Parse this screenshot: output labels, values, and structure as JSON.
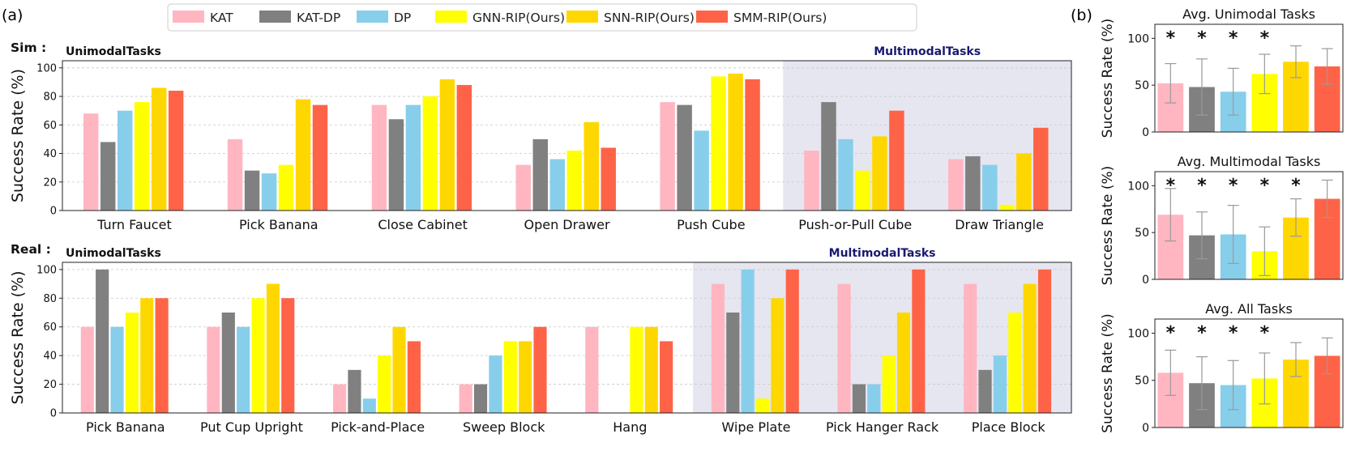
{
  "panel_labels": {
    "a": "(a)",
    "b": "(b)"
  },
  "colors": {
    "KAT": "#FFB6C1",
    "KAT-DP": "#808080",
    "DP": "#87CEEB",
    "GNN-RIP(Ours)": "#FFFF00",
    "SNN-RIP(Ours)": "#FFD700",
    "SMM-RIP(Ours)": "#FF6347",
    "multimodal_bg": "#E6E6F0",
    "multimodal_title": "#191970"
  },
  "legend": [
    "KAT",
    "KAT-DP",
    "DP",
    "GNN-RIP(Ours)",
    "SNN-RIP(Ours)",
    "SMM-RIP(Ours)"
  ],
  "chart_data": [
    {
      "type": "bar",
      "row_label": "Sim :",
      "ylabel": "Success Rate (%)",
      "ylim": [
        0,
        105
      ],
      "yticks": [
        0,
        20,
        40,
        60,
        80,
        100
      ],
      "grid": "y-dashed",
      "unimodal_label": "UnimodalTasks",
      "multimodal_label": "MultimodalTasks",
      "multimodal_start_index": 5,
      "categories": [
        "Turn Faucet",
        "Pick Banana",
        "Close Cabinet",
        "Open Drawer",
        "Push Cube",
        "Push-or-Pull Cube",
        "Draw Triangle"
      ],
      "series": [
        {
          "name": "KAT",
          "values": [
            68,
            50,
            74,
            32,
            76,
            42,
            36
          ]
        },
        {
          "name": "KAT-DP",
          "values": [
            48,
            28,
            64,
            50,
            74,
            76,
            38
          ]
        },
        {
          "name": "DP",
          "values": [
            70,
            26,
            74,
            36,
            56,
            50,
            32
          ]
        },
        {
          "name": "GNN-RIP(Ours)",
          "values": [
            76,
            32,
            80,
            42,
            94,
            28,
            4
          ]
        },
        {
          "name": "SNN-RIP(Ours)",
          "values": [
            86,
            78,
            92,
            62,
            96,
            52,
            40
          ]
        },
        {
          "name": "SMM-RIP(Ours)",
          "values": [
            84,
            74,
            88,
            44,
            92,
            70,
            58
          ]
        }
      ]
    },
    {
      "type": "bar",
      "row_label": "Real :",
      "ylabel": "Success Rate (%)",
      "ylim": [
        0,
        105
      ],
      "yticks": [
        0,
        20,
        40,
        60,
        80,
        100
      ],
      "grid": "y-dashed",
      "unimodal_label": "UnimodalTasks",
      "multimodal_label": "MultimodalTasks",
      "multimodal_start_index": 5,
      "categories": [
        "Pick Banana",
        "Put Cup Upright",
        "Pick-and-Place",
        "Sweep Block",
        "Hang",
        "Wipe Plate",
        "Pick Hanger Rack",
        "Place Block"
      ],
      "series": [
        {
          "name": "KAT",
          "values": [
            60,
            60,
            20,
            20,
            60,
            90,
            90,
            90
          ]
        },
        {
          "name": "KAT-DP",
          "values": [
            100,
            70,
            30,
            20,
            0,
            70,
            20,
            30
          ]
        },
        {
          "name": "DP",
          "values": [
            60,
            60,
            10,
            40,
            0,
            100,
            20,
            40
          ]
        },
        {
          "name": "GNN-RIP(Ours)",
          "values": [
            70,
            80,
            40,
            50,
            60,
            10,
            40,
            70
          ]
        },
        {
          "name": "SNN-RIP(Ours)",
          "values": [
            80,
            90,
            60,
            50,
            60,
            80,
            70,
            90
          ]
        },
        {
          "name": "SMM-RIP(Ours)",
          "values": [
            80,
            80,
            50,
            60,
            50,
            100,
            100,
            100
          ]
        }
      ]
    },
    {
      "type": "bar",
      "title": "Avg. Unimodal Tasks",
      "ylabel": "Success Rate (%)",
      "ylim": [
        0,
        115
      ],
      "yticks": [
        0,
        50,
        100
      ],
      "error_bars": true,
      "categories": [
        "KAT",
        "KAT-DP",
        "DP",
        "GNN-RIP(Ours)",
        "SNN-RIP(Ours)",
        "SMM-RIP(Ours)"
      ],
      "values": [
        52,
        48,
        43,
        62,
        75,
        70
      ],
      "errors": [
        21,
        30,
        25,
        21,
        17,
        19
      ],
      "significance": [
        "*",
        "*",
        "*",
        "*",
        "",
        ""
      ]
    },
    {
      "type": "bar",
      "title": "Avg. Multimodal Tasks",
      "ylabel": "Success Rate (%)",
      "ylim": [
        0,
        115
      ],
      "yticks": [
        0,
        50,
        100
      ],
      "error_bars": true,
      "categories": [
        "KAT",
        "KAT-DP",
        "DP",
        "GNN-RIP(Ours)",
        "SNN-RIP(Ours)",
        "SMM-RIP(Ours)"
      ],
      "values": [
        69,
        47,
        48,
        30,
        66,
        86
      ],
      "errors": [
        28,
        25,
        31,
        26,
        20,
        20
      ],
      "significance": [
        "*",
        "*",
        "*",
        "*",
        "*",
        ""
      ]
    },
    {
      "type": "bar",
      "title": "Avg. All Tasks",
      "ylabel": "Success Rate (%)",
      "ylim": [
        0,
        115
      ],
      "yticks": [
        0,
        50,
        100
      ],
      "error_bars": true,
      "categories": [
        "KAT",
        "KAT-DP",
        "DP",
        "GNN-RIP(Ours)",
        "SNN-RIP(Ours)",
        "SMM-RIP(Ours)"
      ],
      "values": [
        58,
        47,
        45,
        52,
        72,
        76
      ],
      "errors": [
        24,
        28,
        26,
        27,
        18,
        19
      ],
      "significance": [
        "*",
        "*",
        "*",
        "*",
        "",
        ""
      ]
    }
  ]
}
